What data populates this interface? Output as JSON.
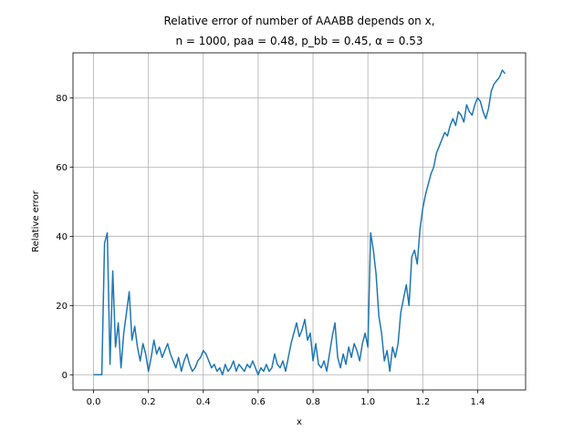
{
  "chart_data": {
    "type": "line",
    "title": "Relative error of number of AAABB depends on x,",
    "subtitle": "n = 1000, paa = 0.48, p_bb = 0.45, α = 0.53",
    "xlabel": "x",
    "ylabel": "Relative error",
    "color": "#1f77b4",
    "grid": true,
    "xlim": [
      -0.075,
      1.575
    ],
    "ylim": [
      -4.4,
      93
    ],
    "xticks": [
      {
        "value": 0,
        "label": "0.0"
      },
      0.2,
      0.4,
      0.6,
      0.8,
      {
        "value": 1,
        "label": "1.0"
      },
      1.2,
      1.4
    ],
    "yticks": [
      0,
      20,
      40,
      60,
      80
    ],
    "x": [
      0,
      0.01,
      0.02,
      0.03,
      0.04,
      0.05,
      0.06,
      0.07,
      0.08,
      0.09,
      0.1,
      0.11,
      0.12,
      0.13,
      0.14,
      0.15,
      0.16,
      0.17,
      0.18,
      0.19,
      0.2,
      0.21,
      0.22,
      0.23,
      0.24,
      0.25,
      0.26,
      0.27,
      0.28,
      0.29,
      0.3,
      0.31,
      0.32,
      0.33,
      0.34,
      0.35,
      0.36,
      0.37,
      0.38,
      0.39,
      0.4,
      0.41,
      0.42,
      0.43,
      0.44,
      0.45,
      0.46,
      0.47,
      0.48,
      0.49,
      0.5,
      0.51,
      0.52,
      0.53,
      0.54,
      0.55,
      0.56,
      0.57,
      0.58,
      0.59,
      0.6,
      0.61,
      0.62,
      0.63,
      0.64,
      0.65,
      0.66,
      0.67,
      0.68,
      0.69,
      0.7,
      0.71,
      0.72,
      0.73,
      0.74,
      0.75,
      0.76,
      0.77,
      0.78,
      0.79,
      0.8,
      0.81,
      0.82,
      0.83,
      0.84,
      0.85,
      0.86,
      0.87,
      0.88,
      0.89,
      0.9,
      0.91,
      0.92,
      0.93,
      0.94,
      0.95,
      0.96,
      0.97,
      0.98,
      0.99,
      1,
      1.01,
      1.02,
      1.03,
      1.04,
      1.05,
      1.06,
      1.07,
      1.08,
      1.09,
      1.1,
      1.11,
      1.12,
      1.13,
      1.14,
      1.15,
      1.16,
      1.17,
      1.18,
      1.19,
      1.2,
      1.21,
      1.22,
      1.23,
      1.24,
      1.25,
      1.26,
      1.27,
      1.28,
      1.29,
      1.3,
      1.31,
      1.32,
      1.33,
      1.34,
      1.35,
      1.36,
      1.37,
      1.38,
      1.39,
      1.4,
      1.41,
      1.42,
      1.43,
      1.44,
      1.45,
      1.46,
      1.47,
      1.48,
      1.49,
      1.5
    ],
    "values": [
      0,
      0,
      0,
      0,
      38,
      41,
      3,
      30,
      8,
      15,
      2,
      12,
      18,
      24,
      10,
      14,
      8,
      4,
      9,
      6,
      1,
      5,
      10,
      6,
      8,
      5,
      7,
      9,
      6,
      4,
      2,
      5,
      1,
      4,
      6,
      3,
      1,
      2,
      4,
      5,
      7,
      6,
      4,
      2,
      3,
      1,
      2,
      0,
      3,
      1,
      2,
      4,
      1,
      3,
      2,
      1,
      3,
      2,
      4,
      2,
      0,
      2,
      1,
      3,
      1,
      2,
      6,
      3,
      2,
      4,
      1,
      5,
      9,
      12,
      15,
      11,
      13,
      16,
      10,
      12,
      4,
      9,
      3,
      2,
      4,
      1,
      6,
      11,
      15,
      5,
      2,
      6,
      3,
      8,
      5,
      9,
      7,
      4,
      9,
      12,
      8,
      41,
      36,
      29,
      17,
      12,
      4,
      7,
      1,
      8,
      5,
      9,
      18,
      22,
      26,
      20,
      34,
      36,
      32,
      42,
      48,
      52,
      55,
      58,
      60,
      64,
      66,
      68,
      70,
      69,
      72,
      74,
      72,
      76,
      75,
      73,
      78,
      76,
      75,
      78,
      80,
      79,
      76,
      74,
      77,
      82,
      84,
      85,
      86,
      88,
      87
    ]
  }
}
